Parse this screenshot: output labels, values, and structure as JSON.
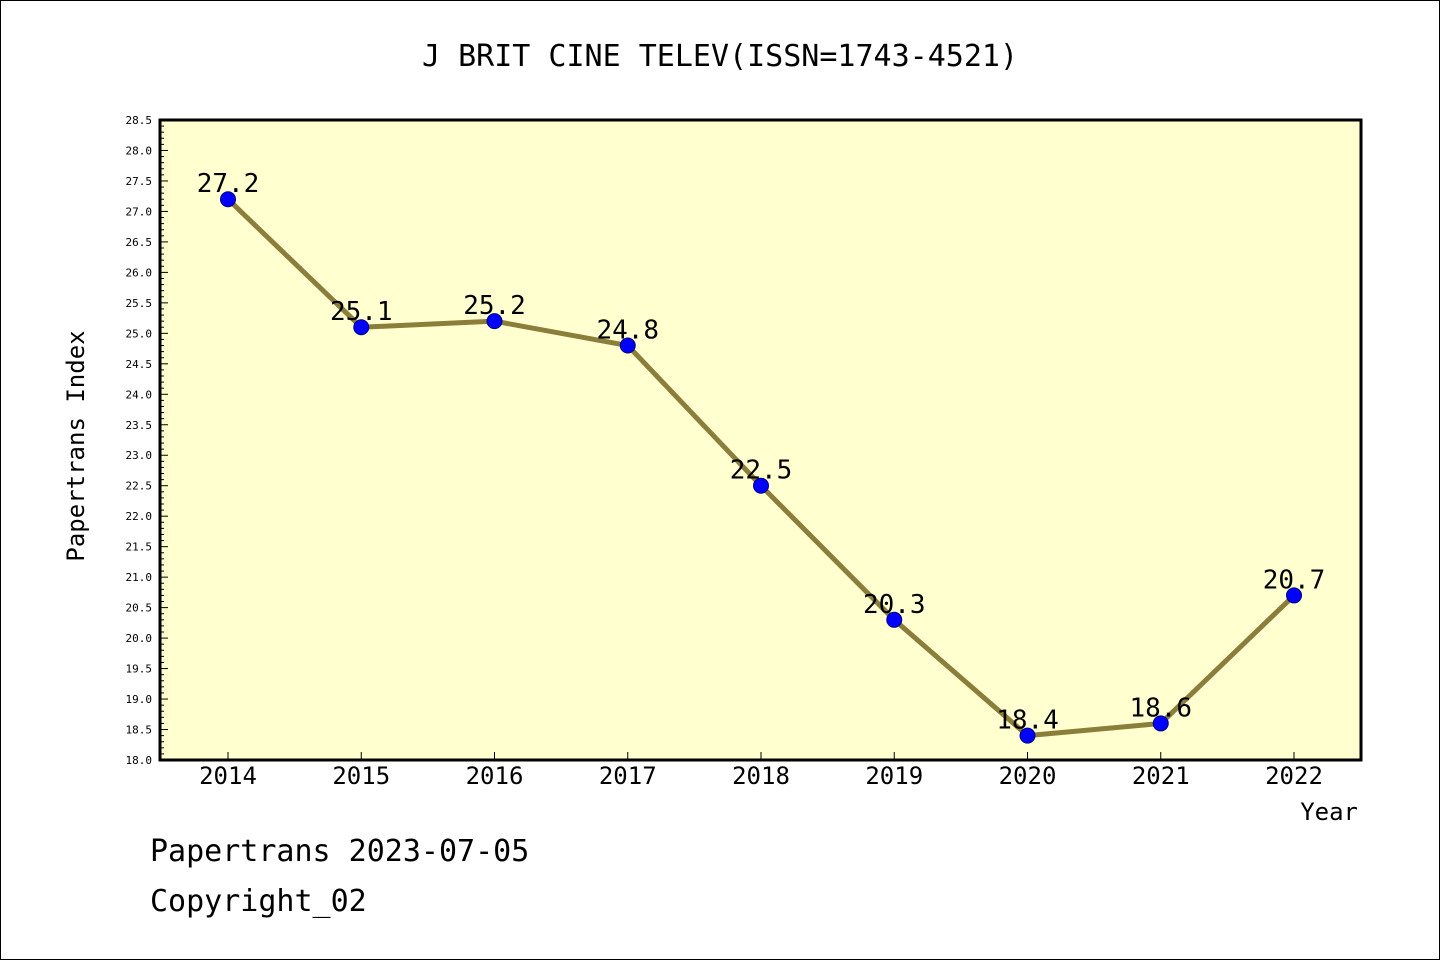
{
  "chart_data": {
    "type": "line",
    "title": "J BRIT CINE TELEV(ISSN=1743-4521)",
    "xlabel": "Year",
    "ylabel": "Papertrans Index",
    "categories": [
      "2014",
      "2015",
      "2016",
      "2017",
      "2018",
      "2019",
      "2020",
      "2021",
      "2022"
    ],
    "values": [
      27.2,
      25.1,
      25.2,
      24.8,
      22.5,
      20.3,
      18.4,
      18.6,
      20.7
    ],
    "data_labels": [
      "27.2",
      "25.1",
      "25.2",
      "24.8",
      "22.5",
      "20.3",
      "18.4",
      "18.6",
      "20.7"
    ],
    "ylim": [
      18.0,
      28.5
    ],
    "ytick_step": 0.5,
    "ytick_labels": [
      "18.0",
      "18.5",
      "19.0",
      "19.5",
      "20.0",
      "20.5",
      "21.0",
      "21.5",
      "22.0",
      "22.5",
      "23.0",
      "23.5",
      "24.0",
      "24.5",
      "25.0",
      "25.5",
      "26.0",
      "26.5",
      "27.0",
      "27.5",
      "28.0",
      "28.5"
    ],
    "grid": false,
    "colors": {
      "plot_background": "#ffffd0",
      "line": "#8b7d3a",
      "marker": "#0000ff"
    }
  },
  "footer": {
    "stamp": "Papertrans 2023-07-05",
    "copyright": "Copyright_02"
  }
}
